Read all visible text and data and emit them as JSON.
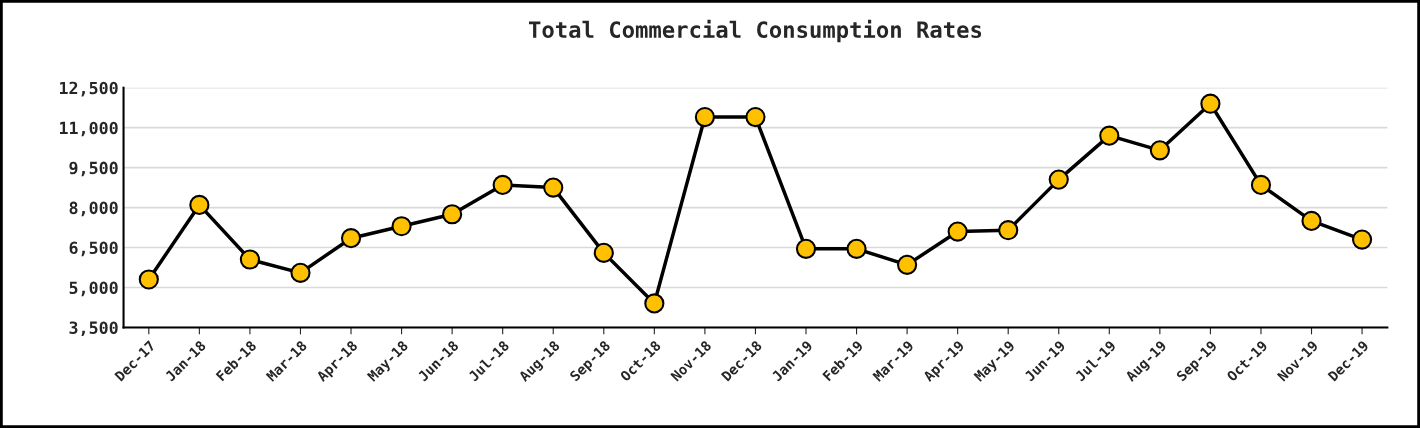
{
  "chart_data": {
    "type": "line",
    "title": "Total Commercial Consumption Rates",
    "categories": [
      "Dec-17",
      "Jan-18",
      "Feb-18",
      "Mar-18",
      "Apr-18",
      "May-18",
      "Jun-18",
      "Jul-18",
      "Aug-18",
      "Sep-18",
      "Oct-18",
      "Nov-18",
      "Dec-18",
      "Jan-19",
      "Feb-19",
      "Mar-19",
      "Apr-19",
      "May-19",
      "Jun-19",
      "Jul-19",
      "Aug-19",
      "Sep-19",
      "Oct-19",
      "Nov-19",
      "Dec-19"
    ],
    "series": [
      {
        "color": "#000000",
        "colors": [
          "#ffc000",
          "#ffc000",
          "#ffc000",
          "#ffc000",
          "#ffc000",
          "#ffc000",
          "#ffc000",
          "#ffc000",
          "#ffc000",
          "#ffc000",
          "#ffc000",
          "#ffc000",
          "#ffc000",
          "#ffc000",
          "#ffc000",
          "#ffc000",
          "#ffc000",
          "#ffc000",
          "#ffc000",
          "#ffc000",
          "#ffc000",
          "#ffc000",
          "#ffc000",
          "#ffc000",
          "#ffc000"
        ],
        "values": [
          5300,
          8100,
          6050,
          5550,
          6850,
          7300,
          7750,
          8850,
          8750,
          6300,
          4400,
          11400,
          11400,
          6450,
          6450,
          5850,
          7100,
          7150,
          9050,
          10700,
          10150,
          11900,
          8850,
          7500,
          6800
        ]
      }
    ],
    "marker": "circle",
    "line_style": "solid",
    "ylim": [
      3500,
      12500
    ],
    "yticks": [
      {
        "value": 3500,
        "label": "3,500"
      },
      {
        "value": 5000,
        "label": "5,000"
      },
      {
        "value": 6500,
        "label": "6,500"
      },
      {
        "value": 8000,
        "label": "8,000"
      },
      {
        "value": 9500,
        "label": "9,500"
      },
      {
        "value": 11000,
        "label": "11,000"
      },
      {
        "value": 12500,
        "label": "12,500"
      }
    ],
    "grid": "y",
    "legend": false
  }
}
